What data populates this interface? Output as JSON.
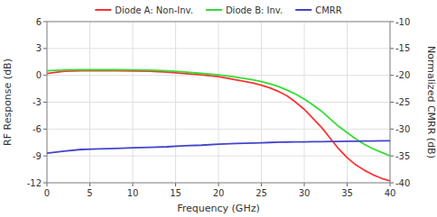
{
  "chart_data": {
    "type": "line",
    "xlabel": "Frequency (GHz)",
    "ylabel": "RF Response (dB)",
    "y2label": "Normalized CMRR (dB)",
    "x": [
      0,
      2,
      4,
      6,
      8,
      10,
      12,
      14,
      16,
      18,
      20,
      22,
      24,
      25,
      26,
      27,
      28,
      29,
      30,
      31,
      32,
      33,
      34,
      35,
      36,
      37,
      38,
      39,
      40
    ],
    "series": [
      {
        "name": "Diode A: Non-Inv.",
        "color": "#ff3333",
        "values": [
          0.2,
          0.45,
          0.5,
          0.5,
          0.5,
          0.48,
          0.45,
          0.35,
          0.2,
          0.05,
          -0.15,
          -0.5,
          -0.85,
          -1.1,
          -1.4,
          -1.8,
          -2.3,
          -3.0,
          -3.8,
          -4.8,
          -5.8,
          -7.0,
          -8.2,
          -9.2,
          -10.0,
          -10.6,
          -11.1,
          -11.5,
          -11.8
        ]
      },
      {
        "name": "Diode B: Inv.",
        "color": "#33dd33",
        "values": [
          0.5,
          0.6,
          0.62,
          0.62,
          0.62,
          0.6,
          0.58,
          0.5,
          0.38,
          0.22,
          0.05,
          -0.2,
          -0.5,
          -0.7,
          -0.95,
          -1.25,
          -1.65,
          -2.1,
          -2.65,
          -3.3,
          -4.0,
          -4.85,
          -5.7,
          -6.4,
          -7.1,
          -7.7,
          -8.2,
          -8.6,
          -9.0
        ]
      },
      {
        "name": "CMRR",
        "color": "#4444cc",
        "axis": "y2",
        "values": [
          -34.5,
          -34.1,
          -33.8,
          -33.7,
          -33.6,
          -33.5,
          -33.4,
          -33.3,
          -33.1,
          -33.0,
          -32.8,
          -32.7,
          -32.6,
          -32.55,
          -32.5,
          -32.45,
          -32.42,
          -32.4,
          -32.38,
          -32.36,
          -32.34,
          -32.32,
          -32.3,
          -32.28,
          -32.26,
          -32.24,
          -32.22,
          -32.2,
          -32.18
        ]
      }
    ],
    "xlim": [
      0,
      40
    ],
    "ylim": [
      -12,
      6
    ],
    "y2lim": [
      -40,
      -10
    ],
    "xticks": [
      0,
      5,
      10,
      15,
      20,
      25,
      30,
      35,
      40
    ],
    "yticks": [
      -12,
      -9,
      -6,
      -3,
      0,
      3,
      6
    ],
    "y2ticks": [
      -40,
      -35,
      -30,
      -25,
      -20,
      -15,
      -10
    ],
    "grid": true,
    "legend": "top"
  }
}
